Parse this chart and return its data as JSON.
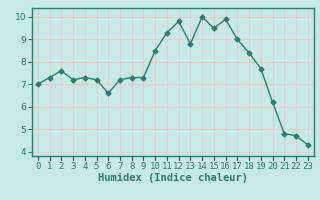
{
  "x": [
    0,
    1,
    2,
    3,
    4,
    5,
    6,
    7,
    8,
    9,
    10,
    11,
    12,
    13,
    14,
    15,
    16,
    17,
    18,
    19,
    20,
    21,
    22,
    23
  ],
  "y": [
    7.0,
    7.3,
    7.6,
    7.2,
    7.3,
    7.2,
    6.6,
    7.2,
    7.3,
    7.3,
    8.5,
    9.3,
    9.8,
    8.8,
    10.0,
    9.5,
    9.9,
    9.0,
    8.4,
    7.7,
    6.2,
    4.8,
    4.7,
    4.3
  ],
  "line_color": "#2e7d6e",
  "marker": "D",
  "marker_size": 2.5,
  "bg_color": "#c8e8e5",
  "plot_bg_color": "#c8e8e5",
  "grid_color": "#e8c8c8",
  "xlabel": "Humidex (Indice chaleur)",
  "xlim": [
    -0.5,
    23.5
  ],
  "ylim": [
    3.8,
    10.4
  ],
  "yticks": [
    4,
    5,
    6,
    7,
    8,
    9,
    10
  ],
  "xticks": [
    0,
    1,
    2,
    3,
    4,
    5,
    6,
    7,
    8,
    9,
    10,
    11,
    12,
    13,
    14,
    15,
    16,
    17,
    18,
    19,
    20,
    21,
    22,
    23
  ],
  "axis_bar_color": "#2e7d6e",
  "tick_label_color": "#2e7d6e",
  "xlabel_color": "#2e7d6e",
  "font_size_label": 7.5,
  "font_size_tick": 6.5,
  "line_width": 1.0
}
